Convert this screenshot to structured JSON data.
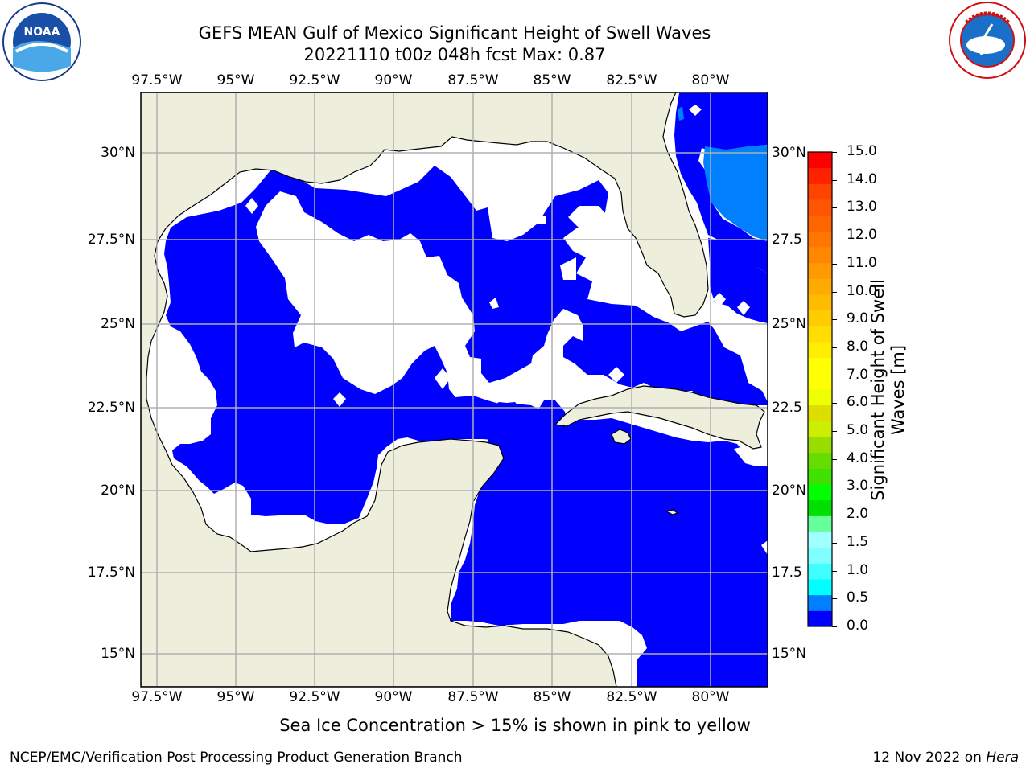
{
  "header": {
    "title_line1": "GEFS MEAN Gulf of Mexico Significant Height of Swell Waves",
    "title_line2": "20221110 t00z 048h fcst   Max: 0.87"
  },
  "logos": {
    "left": {
      "name": "noaa-logo",
      "text": "NOAA",
      "ring_text": "NATIONAL OCEANIC AND ATMOSPHERIC ADMINISTRATION · U.S. DEPARTMENT OF COMMERCE"
    },
    "right": {
      "name": "nws-logo",
      "ring_text": "NATIONAL WEATHER SERVICE"
    }
  },
  "map": {
    "projection": "plate-carree",
    "lon_range": [
      -98.5,
      -78.6
    ],
    "lat_range": [
      14.0,
      31.7
    ],
    "lon_ticks": [
      "97.5°W",
      "95°W",
      "92.5°W",
      "90°W",
      "87.5°W",
      "85°W",
      "82.5°W",
      "80°W"
    ],
    "lat_ticks_left": [
      "30°N",
      "27.5°N",
      "25°N",
      "22.5°N",
      "20°N",
      "17.5°N",
      "15°N"
    ],
    "lat_ticks_right": [
      "30°N",
      "27.5",
      "25°N",
      "22.5",
      "20°N",
      "17.5",
      "15°N"
    ],
    "grid": true,
    "colors": {
      "land": "#eeeedd",
      "ocean_below_lowest_level": "#ffffff",
      "swell_0_0.5": "#0000ff",
      "swell_0.5_1.0": "#0080ff",
      "coastline": "#000000",
      "gridline": "#b0b0b0"
    }
  },
  "colorbar": {
    "label_line1": "Significant Height of Swell",
    "label_line2": "Waves [m]",
    "tick_labels": [
      "15.0",
      "14.0",
      "13.0",
      "12.0",
      "11.0",
      "10.0",
      "9.0",
      "8.0",
      "7.0",
      "6.0",
      "5.0",
      "4.0",
      "3.0",
      "2.0",
      "1.5",
      "1.0",
      "0.5",
      "0.0"
    ],
    "levels": [
      0.0,
      0.5,
      1.0,
      1.5,
      2.0,
      2.5,
      3.0,
      3.5,
      4.0,
      4.5,
      5.0,
      5.5,
      6.0,
      6.5,
      7.0,
      7.5,
      8.0,
      8.5,
      9.0,
      9.5,
      10.0,
      10.5,
      11.0,
      11.5,
      12.0,
      12.5,
      13.0,
      13.5,
      14.0,
      14.5,
      15.0
    ],
    "colors": [
      "#0000ff",
      "#0080ff",
      "#00ffff",
      "#40ffff",
      "#80ffff",
      "#a0ffff",
      "#66ff99",
      "#00e000",
      "#00ff00",
      "#40e000",
      "#66dd00",
      "#99dd00",
      "#ccee00",
      "#dddd00",
      "#eeff00",
      "#ffff00",
      "#ffff00",
      "#ffee00",
      "#ffdd00",
      "#ffcc00",
      "#ffbb00",
      "#ffaa00",
      "#ff9900",
      "#ff8800",
      "#ff7700",
      "#ff6600",
      "#ff5500",
      "#ff4400",
      "#ff2200",
      "#ff0000"
    ]
  },
  "note": "Sea Ice Concentration > 15% is shown in pink to yellow",
  "footer": {
    "left": "NCEP/EMC/Verification Post Processing Product Generation Branch",
    "right_prefix": "12 Nov 2022 on ",
    "right_machine": "Hera"
  }
}
